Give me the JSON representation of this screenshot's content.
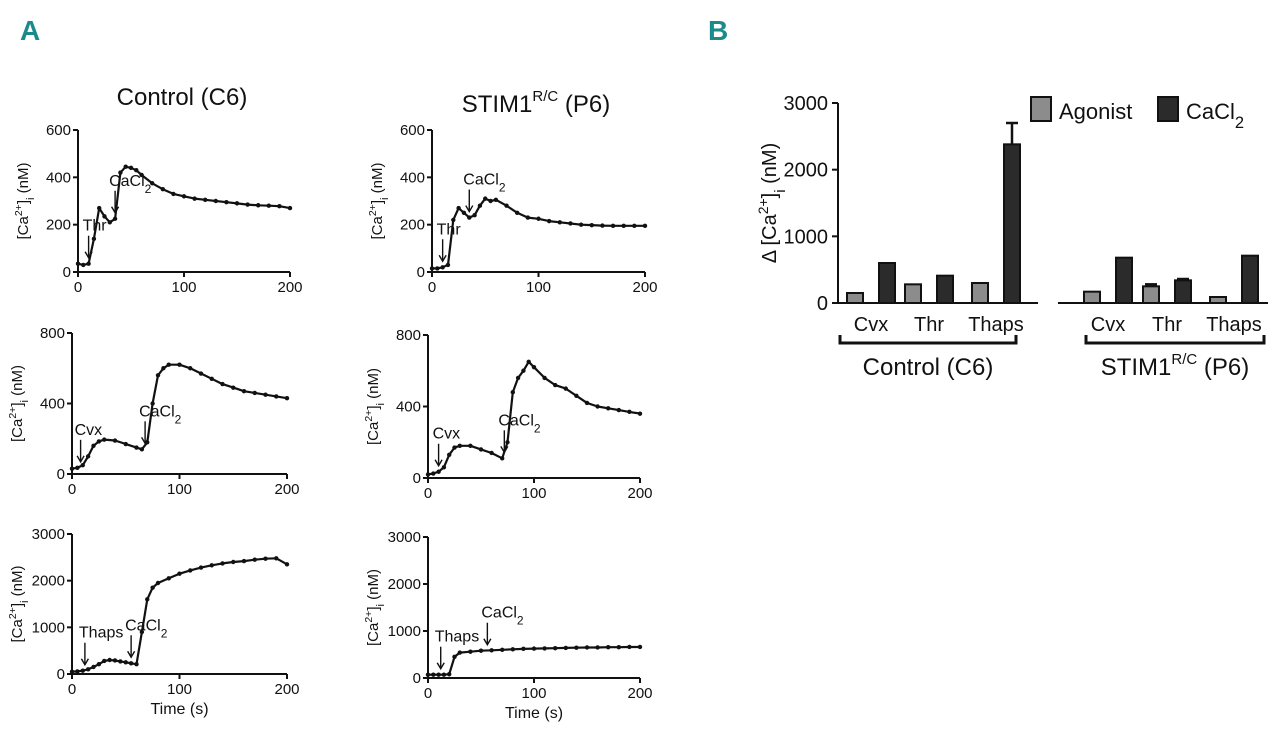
{
  "panel_a_label": "A",
  "panel_b_label": "B",
  "colors": {
    "panel_letter": "#1a8a8a",
    "ink": "#111111",
    "agonist_bar": "#8c8c8c",
    "cacl2_bar": "#2b2b2b"
  },
  "columns": [
    {
      "title": "Control (C6)"
    },
    {
      "title": "STIM1",
      "title_sup": "R/C",
      "title_suffix": " (P6)"
    }
  ],
  "chart_data": [
    {
      "type": "line",
      "id": "ctrl-thr",
      "column": 0,
      "row": 0,
      "ylabel": "[Ca2+]i (nM)",
      "xlabel": "",
      "xlim": [
        0,
        200
      ],
      "ylim": [
        0,
        600
      ],
      "xticks": [
        "0",
        "100",
        "200"
      ],
      "yticks": [
        "0",
        "200",
        "400",
        "600"
      ],
      "annotations": [
        {
          "text": "Thr",
          "x": 10
        },
        {
          "text": "CaCl2",
          "x": 35
        }
      ],
      "x": [
        0,
        5,
        10,
        15,
        20,
        25,
        30,
        35,
        40,
        45,
        50,
        55,
        60,
        70,
        80,
        90,
        100,
        110,
        120,
        130,
        140,
        150,
        160,
        170,
        180,
        190,
        200
      ],
      "y": [
        35,
        30,
        35,
        140,
        270,
        235,
        210,
        225,
        420,
        445,
        440,
        430,
        410,
        375,
        350,
        330,
        320,
        310,
        305,
        300,
        295,
        290,
        285,
        282,
        280,
        278,
        270
      ]
    },
    {
      "type": "line",
      "id": "stim-thr",
      "column": 1,
      "row": 0,
      "ylabel": "[Ca2+]i (nM)",
      "xlabel": "",
      "xlim": [
        0,
        200
      ],
      "ylim": [
        0,
        600
      ],
      "xticks": [
        "0",
        "100",
        "200"
      ],
      "yticks": [
        "0",
        "200",
        "400",
        "600"
      ],
      "annotations": [
        {
          "text": "Thr",
          "x": 10
        },
        {
          "text": "CaCl2",
          "x": 35
        }
      ],
      "x": [
        0,
        5,
        10,
        15,
        20,
        25,
        30,
        35,
        40,
        45,
        50,
        55,
        60,
        70,
        80,
        90,
        100,
        110,
        120,
        130,
        140,
        150,
        160,
        170,
        180,
        190,
        200
      ],
      "y": [
        15,
        15,
        20,
        30,
        220,
        270,
        250,
        230,
        240,
        280,
        310,
        300,
        305,
        280,
        250,
        230,
        225,
        215,
        210,
        205,
        200,
        198,
        196,
        195,
        195,
        195,
        195
      ]
    },
    {
      "type": "line",
      "id": "ctrl-cvx",
      "column": 0,
      "row": 1,
      "ylabel": "[Ca2+]i (nM)",
      "xlabel": "",
      "xlim": [
        0,
        200
      ],
      "ylim": [
        0,
        800
      ],
      "xticks": [
        "0",
        "100",
        "200"
      ],
      "yticks": [
        "0",
        "400",
        "800"
      ],
      "annotations": [
        {
          "text": "Cvx",
          "x": 8
        },
        {
          "text": "CaCl2",
          "x": 68
        }
      ],
      "x": [
        0,
        5,
        10,
        15,
        20,
        25,
        30,
        40,
        50,
        60,
        65,
        70,
        75,
        80,
        85,
        90,
        100,
        110,
        120,
        130,
        140,
        150,
        160,
        170,
        180,
        190,
        200
      ],
      "y": [
        30,
        35,
        50,
        100,
        160,
        185,
        195,
        190,
        170,
        150,
        140,
        180,
        400,
        560,
        600,
        620,
        620,
        600,
        570,
        540,
        510,
        490,
        470,
        460,
        450,
        440,
        430
      ]
    },
    {
      "type": "line",
      "id": "stim-cvx",
      "column": 1,
      "row": 1,
      "ylabel": "[Ca2+]i (nM)",
      "xlabel": "",
      "xlim": [
        0,
        200
      ],
      "ylim": [
        0,
        800
      ],
      "xticks": [
        "0",
        "100",
        "200"
      ],
      "yticks": [
        "0",
        "400",
        "800"
      ],
      "annotations": [
        {
          "text": "Cvx",
          "x": 10
        },
        {
          "text": "CaCl2",
          "x": 72
        }
      ],
      "x": [
        0,
        5,
        10,
        15,
        20,
        25,
        30,
        40,
        50,
        60,
        70,
        75,
        80,
        85,
        90,
        95,
        100,
        110,
        120,
        130,
        140,
        150,
        160,
        170,
        180,
        190,
        200
      ],
      "y": [
        20,
        25,
        35,
        60,
        130,
        170,
        180,
        180,
        160,
        140,
        110,
        200,
        480,
        560,
        600,
        650,
        620,
        560,
        520,
        500,
        460,
        420,
        400,
        390,
        380,
        370,
        360
      ]
    },
    {
      "type": "line",
      "id": "ctrl-thaps",
      "column": 0,
      "row": 2,
      "ylabel": "[Ca2+]i (nM)",
      "xlabel": "Time (s)",
      "xlim": [
        0,
        200
      ],
      "ylim": [
        0,
        3000
      ],
      "xticks": [
        "0",
        "100",
        "200"
      ],
      "yticks": [
        "0",
        "1000",
        "2000",
        "3000"
      ],
      "annotations": [
        {
          "text": "Thaps",
          "x": 12
        },
        {
          "text": "CaCl2",
          "x": 55
        }
      ],
      "x": [
        0,
        5,
        10,
        15,
        20,
        25,
        30,
        35,
        40,
        45,
        50,
        55,
        60,
        65,
        70,
        75,
        80,
        90,
        100,
        110,
        120,
        130,
        140,
        150,
        160,
        170,
        180,
        190,
        200
      ],
      "y": [
        50,
        55,
        70,
        100,
        150,
        210,
        280,
        300,
        290,
        270,
        250,
        230,
        210,
        900,
        1600,
        1850,
        1950,
        2050,
        2150,
        2220,
        2280,
        2330,
        2370,
        2400,
        2420,
        2450,
        2470,
        2480,
        2350
      ]
    },
    {
      "type": "line",
      "id": "stim-thaps",
      "column": 1,
      "row": 2,
      "ylabel": "[Ca2+]i (nM)",
      "xlabel": "Time (s)",
      "xlim": [
        0,
        200
      ],
      "ylim": [
        0,
        3000
      ],
      "xticks": [
        "0",
        "100",
        "200"
      ],
      "yticks": [
        "0",
        "1000",
        "2000",
        "3000"
      ],
      "annotations": [
        {
          "text": "Thaps",
          "x": 12
        },
        {
          "text": "CaCl2",
          "x": 56
        }
      ],
      "x": [
        0,
        5,
        10,
        15,
        20,
        25,
        30,
        40,
        50,
        60,
        70,
        80,
        90,
        100,
        110,
        120,
        130,
        140,
        150,
        160,
        170,
        180,
        190,
        200
      ],
      "y": [
        70,
        70,
        70,
        70,
        80,
        450,
        540,
        560,
        580,
        590,
        600,
        610,
        620,
        625,
        630,
        635,
        640,
        645,
        650,
        650,
        655,
        655,
        660,
        660
      ]
    },
    {
      "type": "bar",
      "id": "summary-bars",
      "panel": "B",
      "ylabel": "Δ [Ca2+]i (nM)",
      "ylim": [
        0,
        3000
      ],
      "yticks": [
        "0",
        "1000",
        "2000",
        "3000"
      ],
      "categories": [
        "Cvx",
        "Thr",
        "Thaps",
        "Cvx",
        "Thr",
        "Thaps"
      ],
      "groups": [
        {
          "label": "Control (C6)",
          "categories": [
            "Cvx",
            "Thr",
            "Thaps"
          ]
        },
        {
          "label": "STIM1",
          "label_sup": "R/C",
          "label_suffix": " (P6)",
          "categories": [
            "Cvx",
            "Thr",
            "Thaps"
          ]
        }
      ],
      "series": [
        {
          "name": "Agonist",
          "values": [
            150,
            280,
            300,
            170,
            250,
            90
          ],
          "errors": [
            0,
            0,
            0,
            0,
            30,
            0
          ]
        },
        {
          "name": "CaCl2",
          "values": [
            600,
            410,
            2380,
            680,
            340,
            710
          ],
          "errors": [
            0,
            0,
            320,
            0,
            20,
            0
          ]
        }
      ],
      "legend": "top-right"
    }
  ]
}
